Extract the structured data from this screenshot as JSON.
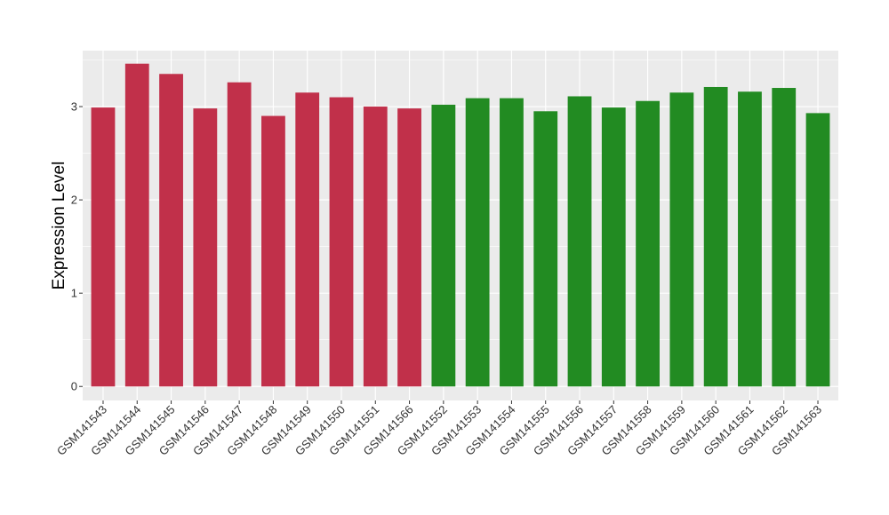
{
  "chart_data": {
    "type": "bar",
    "ylabel": "Expression Level",
    "xlabel": "",
    "ylim": [
      -0.15,
      3.6
    ],
    "yticks": [
      0,
      1,
      2,
      3
    ],
    "grid": true,
    "legend": "none",
    "panel_background": "#EBEBEB",
    "grid_color": "#FFFFFF",
    "categories": [
      "GSM141543",
      "GSM141544",
      "GSM141545",
      "GSM141546",
      "GSM141547",
      "GSM141548",
      "GSM141549",
      "GSM141550",
      "GSM141551",
      "GSM141566",
      "GSM141552",
      "GSM141553",
      "GSM141554",
      "GSM141555",
      "GSM141556",
      "GSM141557",
      "GSM141558",
      "GSM141559",
      "GSM141560",
      "GSM141561",
      "GSM141562",
      "GSM141563"
    ],
    "values": [
      2.99,
      3.46,
      3.35,
      2.98,
      3.26,
      2.9,
      3.15,
      3.1,
      3.0,
      2.98,
      3.02,
      3.09,
      3.09,
      2.95,
      3.11,
      2.99,
      3.06,
      3.15,
      3.21,
      3.16,
      3.2,
      2.93
    ],
    "bar_colors": [
      "#C1304A",
      "#C1304A",
      "#C1304A",
      "#C1304A",
      "#C1304A",
      "#C1304A",
      "#C1304A",
      "#C1304A",
      "#C1304A",
      "#C1304A",
      "#228B22",
      "#228B22",
      "#228B22",
      "#228B22",
      "#228B22",
      "#228B22",
      "#228B22",
      "#228B22",
      "#228B22",
      "#228B22",
      "#228B22",
      "#228B22"
    ]
  }
}
